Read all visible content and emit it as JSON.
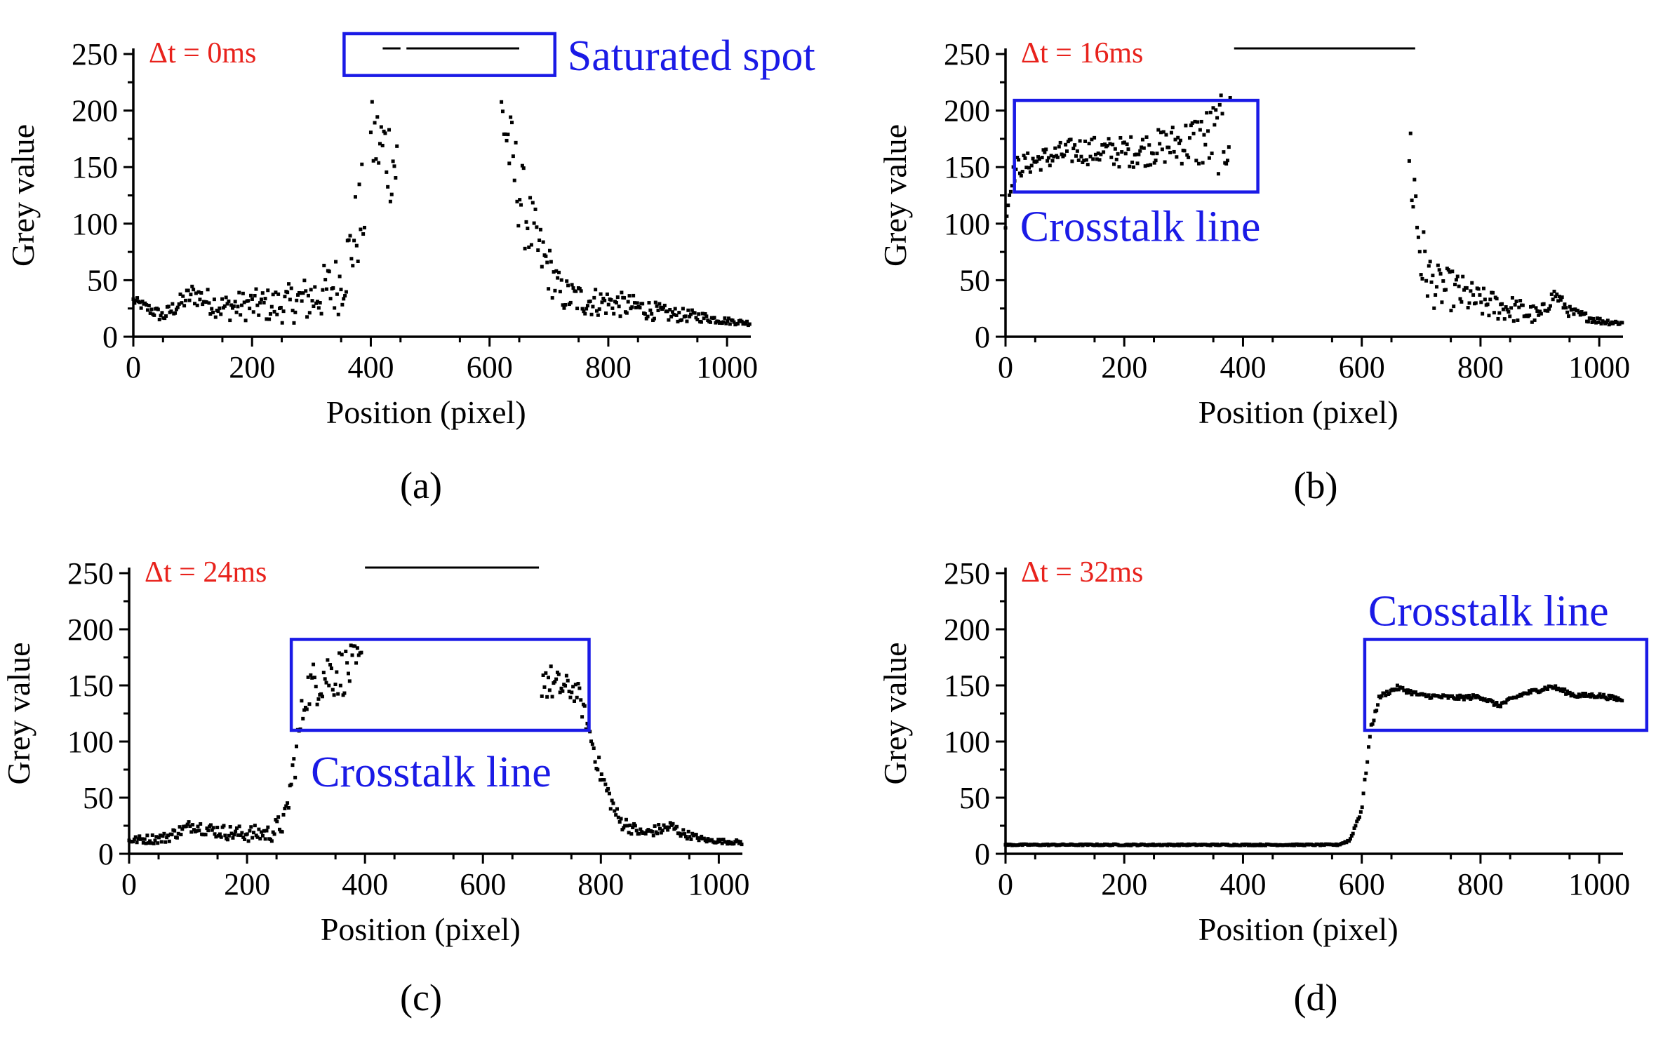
{
  "colors": {
    "annotation": "#1a1ae6",
    "delta_t": "#e8221c",
    "data": "#000000"
  },
  "y_axis_label": "Grey value",
  "x_axis_label": "Position (pixel)",
  "chart_data": [
    {
      "type": "scatter",
      "panel_label": "(a)",
      "delta_t": "Δt = 0ms",
      "xlabel": "Position (pixel)",
      "ylabel": "Grey value",
      "xlim": [
        0,
        1040
      ],
      "ylim": [
        0,
        250
      ],
      "xticks": [
        0,
        200,
        400,
        600,
        800,
        1000
      ],
      "yticks": [
        0,
        50,
        100,
        150,
        200,
        250
      ],
      "annotation": {
        "text": "Saturated spot",
        "x_range": [
          355,
          710
        ],
        "y_range": [
          231,
          268
        ]
      },
      "saturated": [
        [
          420,
          450
        ],
        [
          460,
          650
        ]
      ],
      "series": [
        {
          "x": [
            0,
            50,
            100,
            150,
            200,
            250,
            300,
            350,
            390
          ],
          "y": [
            32,
            18,
            38,
            26,
            28,
            28,
            34,
            48,
            120
          ],
          "noise": [
            4,
            6,
            10,
            12,
            14,
            16,
            22,
            28,
            45
          ]
        },
        {
          "x": [
            400,
            425,
            445
          ],
          "y": [
            175,
            165,
            150
          ],
          "noise": [
            35,
            40,
            45
          ]
        },
        {
          "x": [
            620,
            640,
            660,
            680,
            700,
            720,
            760,
            800,
            850,
            900,
            950,
            1000,
            1040
          ],
          "y": [
            200,
            150,
            110,
            80,
            60,
            38,
            32,
            30,
            26,
            20,
            18,
            14,
            12
          ],
          "noise": [
            30,
            40,
            35,
            28,
            22,
            16,
            14,
            12,
            10,
            7,
            5,
            3,
            2
          ]
        }
      ]
    },
    {
      "type": "scatter",
      "panel_label": "(b)",
      "delta_t": "Δt = 16ms",
      "xlabel": "Position (pixel)",
      "ylabel": "Grey value",
      "xlim": [
        0,
        1040
      ],
      "ylim": [
        0,
        250
      ],
      "xticks": [
        0,
        200,
        400,
        600,
        800,
        1000
      ],
      "yticks": [
        0,
        50,
        100,
        150,
        200,
        250
      ],
      "annotation": {
        "text": "Crosstalk line",
        "x_range": [
          15,
          425
        ],
        "y_range": [
          128,
          209
        ]
      },
      "saturated": [
        [
          385,
          690
        ]
      ],
      "series": [
        {
          "x": [
            0,
            10,
            20,
            60,
            120,
            200,
            260,
            300,
            340,
            380
          ],
          "y": [
            100,
            140,
            150,
            157,
            165,
            163,
            168,
            172,
            175,
            180
          ],
          "noise": [
            10,
            8,
            10,
            10,
            12,
            14,
            16,
            20,
            30,
            40
          ]
        },
        {
          "x": [
            680,
            690,
            700,
            720,
            760,
            800,
            850,
            900,
            925,
            950,
            1000,
            1040
          ],
          "y": [
            170,
            120,
            70,
            45,
            40,
            30,
            25,
            18,
            38,
            22,
            14,
            12
          ],
          "noise": [
            50,
            50,
            35,
            20,
            18,
            14,
            12,
            8,
            6,
            5,
            3,
            2
          ]
        }
      ]
    },
    {
      "type": "scatter",
      "panel_label": "(c)",
      "delta_t": "Δt = 24ms",
      "xlabel": "Position (pixel)",
      "ylabel": "Grey value",
      "xlim": [
        0,
        1040
      ],
      "ylim": [
        0,
        250
      ],
      "xticks": [
        0,
        200,
        400,
        600,
        800,
        1000
      ],
      "yticks": [
        0,
        50,
        100,
        150,
        200,
        250
      ],
      "annotation": {
        "text": "Crosstalk line",
        "x_range": [
          275,
          780
        ],
        "y_range": [
          110,
          191
        ]
      },
      "saturated": [
        [
          400,
          695
        ]
      ],
      "series": [
        {
          "x": [
            0,
            60,
            110,
            130,
            180,
            240,
            265,
            280,
            300,
            330,
            360,
            395
          ],
          "y": [
            12,
            14,
            26,
            22,
            18,
            18,
            30,
            80,
            145,
            160,
            162,
            168
          ],
          "noise": [
            3,
            5,
            6,
            6,
            7,
            8,
            12,
            18,
            18,
            25,
            22,
            20
          ]
        },
        {
          "x": [
            700,
            720,
            760,
            780,
            800,
            830,
            870,
            920,
            940,
            980,
            1040
          ],
          "y": [
            160,
            150,
            145,
            110,
            70,
            30,
            18,
            24,
            18,
            12,
            10
          ],
          "noise": [
            22,
            15,
            10,
            10,
            10,
            8,
            4,
            6,
            4,
            2,
            2
          ]
        }
      ]
    },
    {
      "type": "scatter",
      "panel_label": "(d)",
      "delta_t": "Δt = 32ms",
      "xlabel": "Position (pixel)",
      "ylabel": "Grey value",
      "xlim": [
        0,
        1040
      ],
      "ylim": [
        0,
        250
      ],
      "xticks": [
        0,
        200,
        400,
        600,
        800,
        1000
      ],
      "yticks": [
        0,
        50,
        100,
        150,
        200,
        250
      ],
      "annotation": {
        "text": "Crosstalk line",
        "x_range": [
          605,
          1080
        ],
        "y_range": [
          110,
          191
        ]
      },
      "saturated": [],
      "series": [
        {
          "x": [
            0,
            300,
            560,
            580,
            600,
            615,
            630,
            660,
            700,
            760,
            800,
            830,
            870,
            920,
            960,
            1000,
            1040
          ],
          "y": [
            8,
            8,
            8,
            12,
            40,
            110,
            140,
            148,
            141,
            139,
            140,
            132,
            142,
            149,
            141,
            141,
            137
          ],
          "noise": [
            0.6,
            0.6,
            0.6,
            1,
            3,
            3,
            2,
            2,
            2,
            2,
            2,
            2,
            2,
            2,
            2,
            2,
            2
          ]
        }
      ]
    }
  ]
}
